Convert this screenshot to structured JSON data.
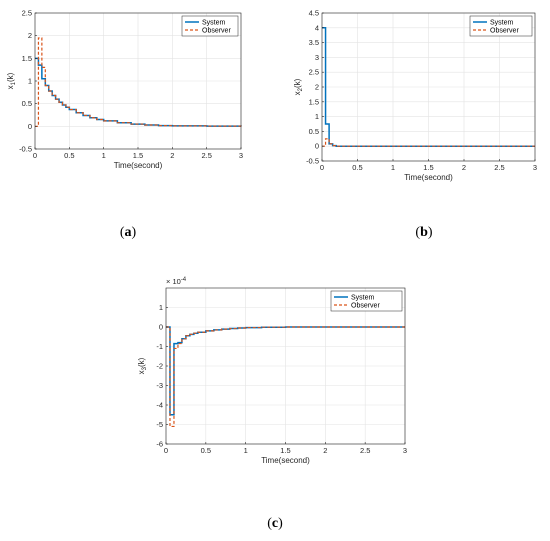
{
  "chart_data": [
    {
      "type": "line",
      "caption": "(a)",
      "xlabel": "Time(second)",
      "ylabel_base": "x",
      "ylabel_sub": "1",
      "ylabel_suffix": "(k)",
      "xlim": [
        0,
        3
      ],
      "ylim": [
        -0.5,
        2.5
      ],
      "xticks": [
        0,
        0.5,
        1,
        1.5,
        2,
        2.5,
        3
      ],
      "xtick_labels": [
        "0",
        "0.5",
        "1",
        "1.5",
        "2",
        "2.5",
        "3"
      ],
      "yticks": [
        -0.5,
        0,
        0.5,
        1,
        1.5,
        2,
        2.5
      ],
      "ytick_labels": [
        "-0.5",
        "0",
        "0.5",
        "1",
        "1.5",
        "2",
        "2.5"
      ],
      "exponent_label": "",
      "grid": true,
      "legend_position": "top-right",
      "series": [
        {
          "name": "System",
          "color": "#0072BD",
          "style": "solid",
          "step": true,
          "x": [
            0,
            0.05,
            0.1,
            0.15,
            0.2,
            0.25,
            0.3,
            0.35,
            0.4,
            0.45,
            0.5,
            0.6,
            0.7,
            0.8,
            0.9,
            1.0,
            1.2,
            1.4,
            1.6,
            1.8,
            2.0,
            2.5,
            3.0
          ],
          "y": [
            1.5,
            1.35,
            1.05,
            0.9,
            0.78,
            0.68,
            0.6,
            0.53,
            0.47,
            0.42,
            0.37,
            0.3,
            0.24,
            0.19,
            0.15,
            0.12,
            0.08,
            0.05,
            0.03,
            0.015,
            0.01,
            0.005,
            0.0
          ]
        },
        {
          "name": "Observer",
          "color": "#D95319",
          "style": "dashed",
          "step": true,
          "x": [
            0,
            0.05,
            0.1,
            0.15,
            0.2,
            0.25,
            0.3,
            0.35,
            0.4,
            0.45,
            0.5,
            0.6,
            0.7,
            0.8,
            0.9,
            1.0,
            1.2,
            1.4,
            1.6,
            1.8,
            2.0,
            2.5,
            3.0
          ],
          "y": [
            0,
            1.95,
            1.3,
            0.9,
            0.78,
            0.68,
            0.6,
            0.53,
            0.47,
            0.42,
            0.37,
            0.3,
            0.24,
            0.19,
            0.15,
            0.12,
            0.08,
            0.05,
            0.03,
            0.015,
            0.01,
            0.005,
            0.0
          ]
        }
      ]
    },
    {
      "type": "line",
      "caption": "(b)",
      "xlabel": "Time(second)",
      "ylabel_base": "x",
      "ylabel_sub": "2",
      "ylabel_suffix": "(k)",
      "xlim": [
        0,
        3
      ],
      "ylim": [
        -0.5,
        4.5
      ],
      "xticks": [
        0,
        0.5,
        1,
        1.5,
        2,
        2.5,
        3
      ],
      "xtick_labels": [
        "0",
        "0.5",
        "1",
        "1.5",
        "2",
        "2.5",
        "3"
      ],
      "yticks": [
        -0.5,
        0,
        0.5,
        1,
        1.5,
        2,
        2.5,
        3,
        3.5,
        4,
        4.5
      ],
      "ytick_labels": [
        "-0.5",
        "0",
        "0.5",
        "1",
        "1.5",
        "2",
        "2.5",
        "3",
        "3.5",
        "4",
        "4.5"
      ],
      "exponent_label": "",
      "grid": true,
      "legend_position": "top-right",
      "series": [
        {
          "name": "System",
          "color": "#0072BD",
          "style": "solid",
          "step": true,
          "x": [
            0,
            0.05,
            0.1,
            0.15,
            0.2,
            3.0
          ],
          "y": [
            4.0,
            0.75,
            0.08,
            0.02,
            0.0,
            0.0
          ]
        },
        {
          "name": "Observer",
          "color": "#D95319",
          "style": "dashed",
          "step": true,
          "x": [
            0,
            0.05,
            0.1,
            0.15,
            0.2,
            3.0
          ],
          "y": [
            0,
            0.25,
            0.08,
            0.02,
            0.0,
            0.0
          ]
        }
      ]
    },
    {
      "type": "line",
      "caption": "(c)",
      "xlabel": "Time(second)",
      "ylabel_base": "x",
      "ylabel_sub": "3",
      "ylabel_suffix": "(k)",
      "xlim": [
        0,
        3
      ],
      "ylim": [
        -6,
        2
      ],
      "xticks": [
        0,
        0.5,
        1,
        1.5,
        2,
        2.5,
        3
      ],
      "xtick_labels": [
        "0",
        "0.5",
        "1",
        "1.5",
        "2",
        "2.5",
        "3"
      ],
      "yticks": [
        -6,
        -5,
        -4,
        -3,
        -2,
        -1,
        0,
        1
      ],
      "ytick_labels": [
        "-6",
        "-5",
        "-4",
        "-3",
        "-2",
        "-1",
        "0",
        "1"
      ],
      "exponent_label": "× 10",
      "exponent_power": "-4",
      "grid": true,
      "legend_position": "top-right",
      "series": [
        {
          "name": "System",
          "color": "#0072BD",
          "style": "solid",
          "step": true,
          "x": [
            0,
            0.05,
            0.1,
            0.15,
            0.2,
            0.25,
            0.3,
            0.35,
            0.4,
            0.5,
            0.6,
            0.7,
            0.8,
            0.9,
            1.0,
            1.2,
            1.5,
            2.0,
            3.0
          ],
          "y": [
            0,
            -4.5,
            -0.85,
            -0.8,
            -0.6,
            -0.45,
            -0.38,
            -0.32,
            -0.27,
            -0.2,
            -0.15,
            -0.11,
            -0.08,
            -0.05,
            -0.03,
            -0.01,
            0.0,
            0.0,
            0.0
          ]
        },
        {
          "name": "Observer",
          "color": "#D95319",
          "style": "dashed",
          "step": true,
          "x": [
            0,
            0.05,
            0.1,
            0.15,
            0.2,
            0.25,
            0.3,
            0.35,
            0.4,
            0.5,
            0.6,
            0.7,
            0.8,
            0.9,
            1.0,
            1.2,
            1.5,
            2.0,
            3.0
          ],
          "y": [
            0,
            -5.1,
            -1.1,
            -0.85,
            -0.6,
            -0.45,
            -0.38,
            -0.32,
            -0.27,
            -0.2,
            -0.15,
            -0.11,
            -0.08,
            -0.05,
            -0.03,
            -0.01,
            0.0,
            0.0,
            0.0
          ]
        }
      ]
    }
  ]
}
